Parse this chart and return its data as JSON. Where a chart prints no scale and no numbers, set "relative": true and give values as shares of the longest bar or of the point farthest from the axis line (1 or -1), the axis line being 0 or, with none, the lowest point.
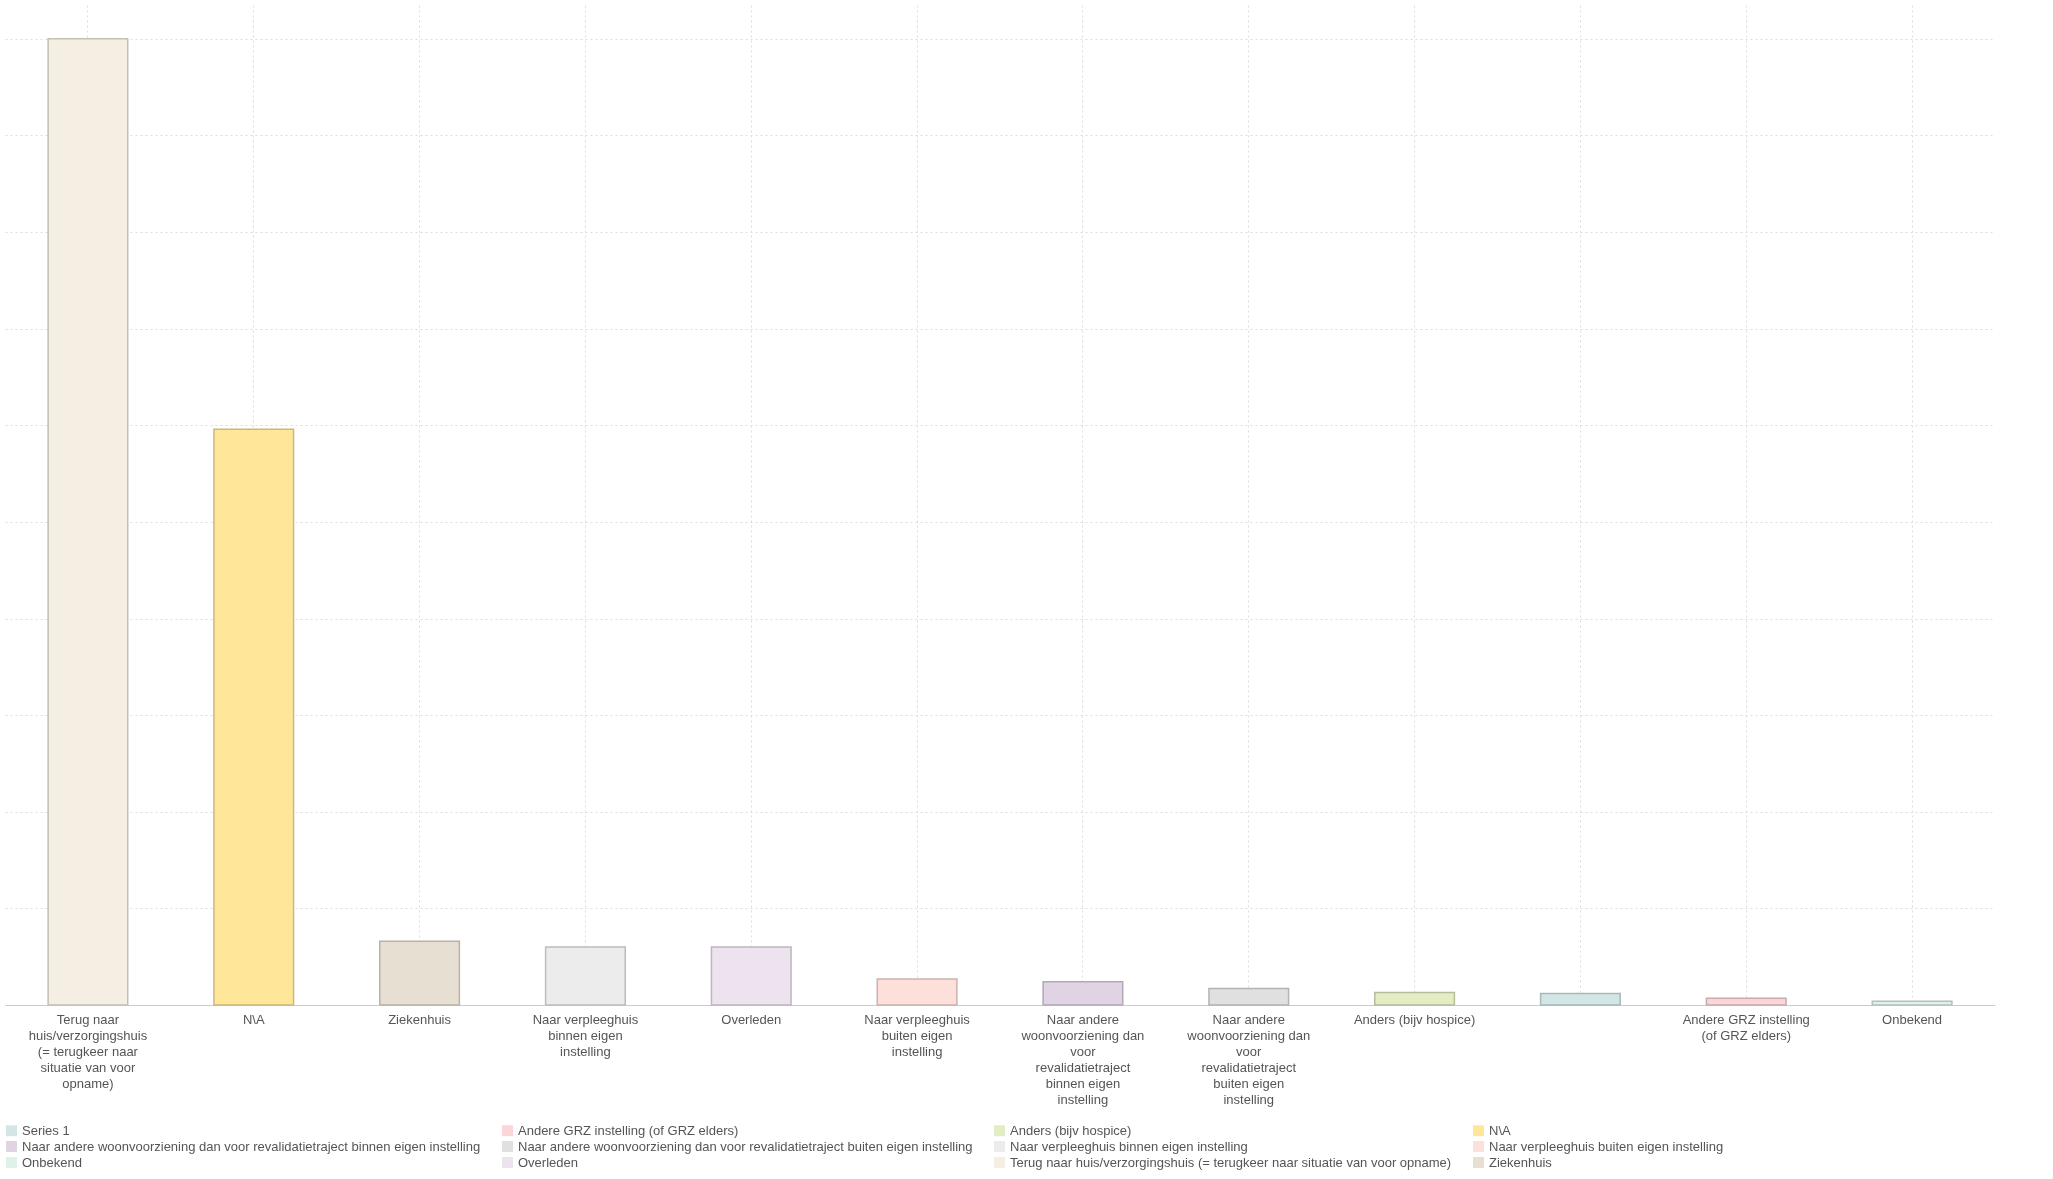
{
  "chart_data": {
    "type": "bar",
    "relative": true,
    "grid": true,
    "legend": "bottom",
    "categories": [
      "Terug naar huis/verzorgingshuis (= terugkeer naar situatie van voor opname)",
      "N\\A",
      "Ziekenhuis",
      "Naar verpleeghuis binnen eigen instelling",
      "Overleden",
      "Naar verpleeghuis buiten eigen instelling",
      "Naar andere woonvoorziening dan voor revalidatietraject binnen eigen instelling",
      "Naar andere woonvoorziening dan voor revalidatietraject buiten eigen instelling",
      "Anders (bijv hospice)",
      null,
      "Andere GRZ instelling (of GRZ elders)",
      "Onbekend"
    ],
    "series": [
      {
        "name": "Series 1",
        "color": "#d3e6e6",
        "values": [
          null,
          null,
          null,
          null,
          null,
          null,
          null,
          null,
          null,
          0.012,
          null,
          null
        ]
      },
      {
        "name": "Andere GRZ instelling (of GRZ elders)",
        "color": "#fbd5d8",
        "values": [
          null,
          null,
          null,
          null,
          null,
          null,
          null,
          null,
          null,
          null,
          0.007,
          null
        ]
      },
      {
        "name": "Anders (bijv hospice)",
        "color": "#e3edc4",
        "values": [
          null,
          null,
          null,
          null,
          null,
          null,
          null,
          null,
          0.013,
          null,
          null,
          null
        ]
      },
      {
        "name": "N\\A",
        "color": "#ffe699",
        "values": [
          null,
          0.596,
          null,
          null,
          null,
          null,
          null,
          null,
          null,
          null,
          null,
          null
        ]
      },
      {
        "name": "Naar andere woonvoorziening dan voor revalidatietraject binnen eigen instelling",
        "color": "#e0d3e3",
        "values": [
          null,
          null,
          null,
          null,
          null,
          null,
          0.024,
          null,
          null,
          null,
          null,
          null
        ]
      },
      {
        "name": "Naar andere woonvoorziening dan voor revalidatietraject buiten eigen instelling",
        "color": "#e0e0e0",
        "values": [
          null,
          null,
          null,
          null,
          null,
          null,
          null,
          0.017,
          null,
          null,
          null,
          null
        ]
      },
      {
        "name": "Naar verpleeghuis binnen eigen instelling",
        "color": "#ececec",
        "values": [
          null,
          null,
          null,
          0.06,
          null,
          null,
          null,
          null,
          null,
          null,
          null,
          null
        ]
      },
      {
        "name": "Naar verpleeghuis buiten eigen instelling",
        "color": "#fde0d9",
        "values": [
          null,
          null,
          null,
          null,
          null,
          0.027,
          null,
          null,
          null,
          null,
          null,
          null
        ]
      },
      {
        "name": "Onbekend",
        "color": "#e0f2e8",
        "values": [
          null,
          null,
          null,
          null,
          null,
          null,
          null,
          null,
          null,
          null,
          null,
          0.004
        ]
      },
      {
        "name": "Overleden",
        "color": "#ede3ef",
        "values": [
          null,
          null,
          null,
          null,
          0.06,
          null,
          null,
          null,
          null,
          null,
          null,
          null
        ]
      },
      {
        "name": "Terug naar huis/verzorgingshuis (= terugkeer naar situatie van voor opname)",
        "color": "#f5efe3",
        "values": [
          1,
          null,
          null,
          null,
          null,
          null,
          null,
          null,
          null,
          null,
          null,
          null
        ]
      },
      {
        "name": "Ziekenhuis",
        "color": "#e6dfd2",
        "values": [
          null,
          null,
          0.066,
          null,
          null,
          null,
          null,
          null,
          null,
          null,
          null,
          null
        ]
      }
    ]
  }
}
